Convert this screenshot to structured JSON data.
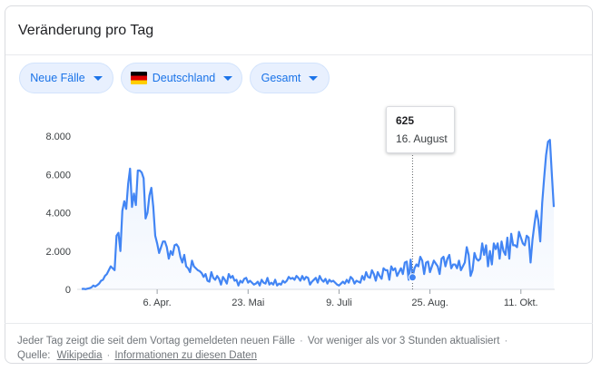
{
  "header": {
    "title": "Veränderung pro Tag"
  },
  "filters": {
    "metric": "Neue Fälle",
    "country": "Deutschland",
    "scope": "Gesamt"
  },
  "tooltip": {
    "value": "625",
    "date": "16. August"
  },
  "footer": {
    "description": "Jeder Tag zeigt die seit dem Vortag gemeldeten neuen Fälle",
    "updated": "Vor weniger als vor 3 Stunden aktualisiert",
    "source_label": "Quelle:",
    "source_link": "Wikipedia",
    "info_link": "Informationen zu diesen Daten",
    "separator": "·"
  },
  "colors": {
    "line": "#4285f4",
    "area": "#e8f0fe",
    "accent": "#1a73e8"
  },
  "chart_data": {
    "type": "area",
    "title": "",
    "xlabel": "",
    "ylabel": "",
    "ylim": [
      0,
      8000
    ],
    "y_ticks": [
      0,
      2000,
      4000,
      6000,
      8000
    ],
    "y_tick_labels": [
      "0",
      "2.000",
      "4.000",
      "6.000",
      "8.000"
    ],
    "x_ticks": [
      {
        "label": "6. Apr.",
        "index": 39
      },
      {
        "label": "23. Mai",
        "index": 86
      },
      {
        "label": "9. Juli",
        "index": 133
      },
      {
        "label": "25. Aug.",
        "index": 180
      },
      {
        "label": "11. Okt.",
        "index": 227
      }
    ],
    "grid": false,
    "highlight_index": 171,
    "series": [
      {
        "values": [
          20,
          30,
          10,
          40,
          60,
          100,
          200,
          150,
          220,
          300,
          450,
          500,
          700,
          800,
          1000,
          1200,
          1100,
          1000,
          2800,
          2950,
          2000,
          4100,
          4600,
          4200,
          5500,
          6300,
          4300,
          5000,
          4400,
          6200,
          6200,
          6100,
          5800,
          3700,
          4000,
          4900,
          5300,
          4300,
          2800,
          2400,
          1900,
          2200,
          2500,
          2500,
          2200,
          1600,
          2000,
          1800,
          2300,
          2350,
          2200,
          1700,
          1400,
          1800,
          1200,
          1100,
          900,
          1500,
          1200,
          1100,
          1000,
          950,
          850,
          650,
          800,
          450,
          400,
          900,
          600,
          500,
          700,
          550,
          250,
          650,
          500,
          300,
          800,
          600,
          700,
          450,
          500,
          200,
          450,
          350,
          550,
          600,
          350,
          450,
          350,
          250,
          300,
          400,
          200,
          500,
          350,
          300,
          600,
          250,
          350,
          250,
          500,
          200,
          300,
          250,
          450,
          350,
          450,
          650,
          550,
          600,
          500,
          700,
          600,
          450,
          700,
          500,
          650,
          600,
          250,
          400,
          500,
          600,
          350,
          700,
          500,
          400,
          550,
          300,
          500,
          400,
          450,
          350,
          250,
          200,
          300,
          400,
          300,
          500,
          350,
          650,
          550,
          300,
          450,
          400,
          350,
          700,
          500,
          900,
          650,
          600,
          1000,
          800,
          450,
          900,
          700,
          550,
          1100,
          1000,
          1000,
          500,
          1200,
          1000,
          1100,
          700,
          900,
          1100,
          800,
          1400,
          1450,
          500,
          1550,
          625,
          1100,
          1300,
          1200,
          1700,
          1500,
          800,
          1400,
          1450,
          900,
          1200,
          1500,
          1350,
          1200,
          800,
          1600,
          1700,
          1200,
          1600,
          1800,
          1100,
          1300,
          1300,
          1100,
          1500,
          1000,
          1200,
          1400,
          2200,
          1800,
          700,
          1000,
          1900,
          1600,
          1500,
          1600,
          2400,
          1800,
          2300,
          1200,
          2000,
          1300,
          2400,
          2100,
          2400,
          1600,
          2500,
          2000,
          1800,
          2700,
          1600,
          2900,
          2300,
          2300,
          2200,
          3000,
          2700,
          2400,
          2300,
          2800,
          2700,
          1400,
          2600,
          3400,
          4100,
          3600,
          2500,
          4500,
          5800,
          7000,
          7700,
          7800,
          6000,
          4300
        ]
      }
    ]
  }
}
